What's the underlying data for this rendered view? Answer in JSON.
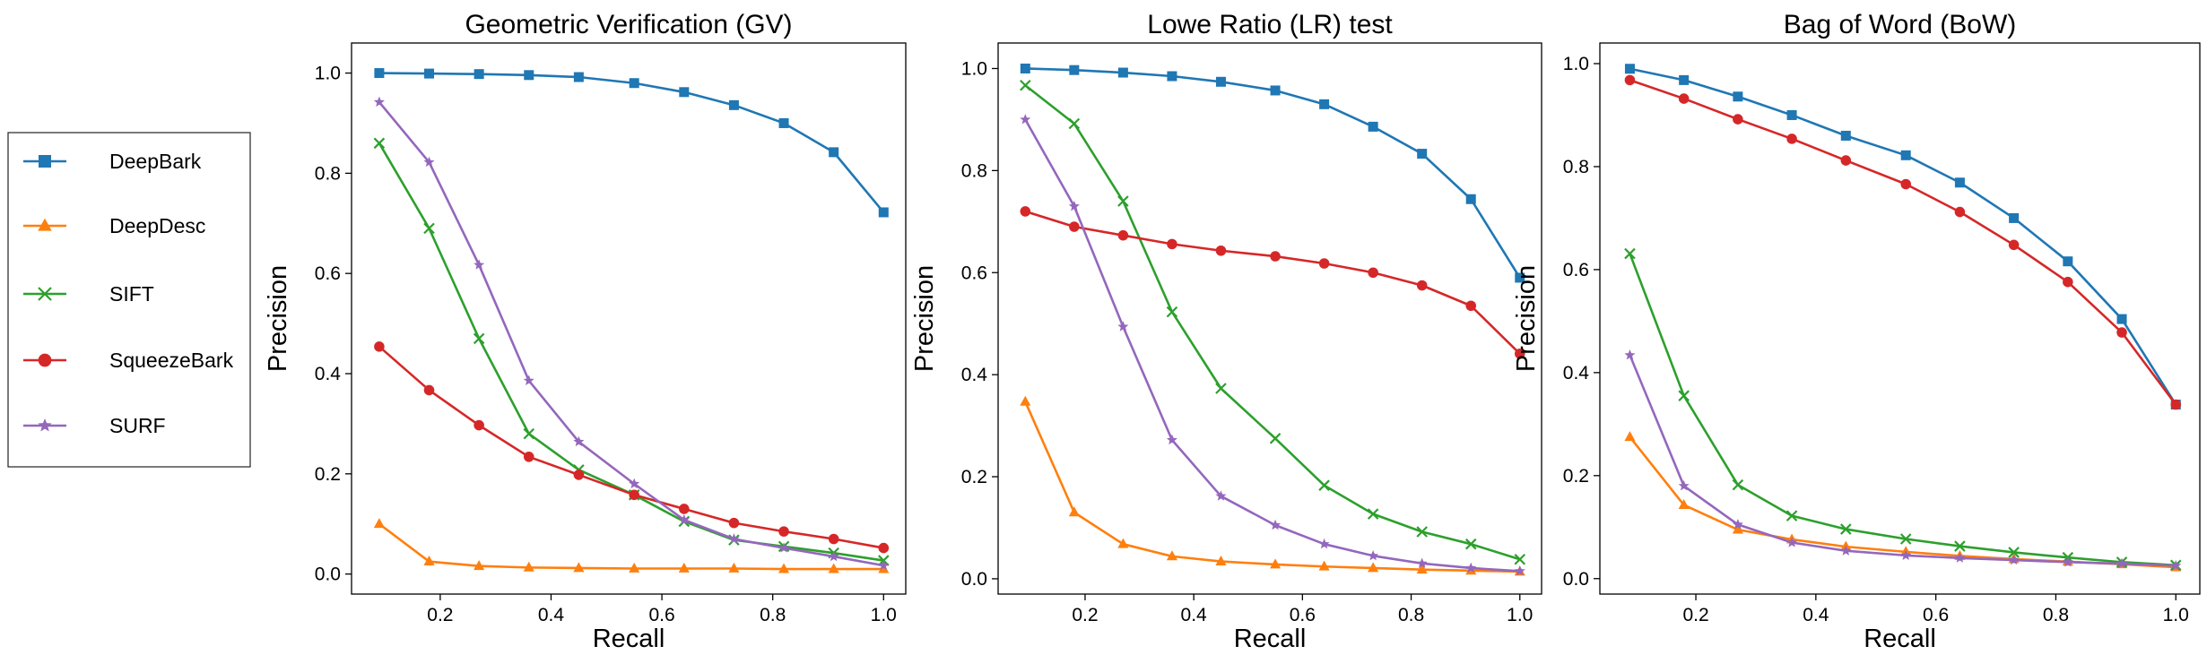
{
  "legend": {
    "placement": "left, outside panels",
    "entries": [
      {
        "label": "DeepBark",
        "color": "#1f77b4",
        "marker": "square"
      },
      {
        "label": "DeepDesc",
        "color": "#ff7f0e",
        "marker": "triangle"
      },
      {
        "label": "SIFT",
        "color": "#2ca02c",
        "marker": "x"
      },
      {
        "label": "SqueezeBark",
        "color": "#d62728",
        "marker": "circle"
      },
      {
        "label": "SURF",
        "color": "#9467bd",
        "marker": "star"
      }
    ]
  },
  "chart_data": [
    {
      "type": "line",
      "title": "Geometric Verification (GV)",
      "xlabel": "Recall",
      "ylabel": "Precision",
      "xlim": [
        0.04,
        1.04
      ],
      "ylim": [
        -0.04,
        1.06
      ],
      "xticks": [
        "0.2",
        "0.4",
        "0.6",
        "0.8",
        "1.0"
      ],
      "yticks": [
        "0.0",
        "0.2",
        "0.4",
        "0.6",
        "0.8",
        "1.0"
      ],
      "grid": false,
      "x": [
        0.09,
        0.18,
        0.27,
        0.36,
        0.45,
        0.55,
        0.64,
        0.73,
        0.82,
        0.91,
        1.0
      ],
      "series": [
        {
          "name": "DeepBark",
          "values": [
            1.0,
            0.999,
            0.998,
            0.996,
            0.992,
            0.98,
            0.962,
            0.936,
            0.9,
            0.842,
            0.722
          ]
        },
        {
          "name": "DeepDesc",
          "values": [
            0.1,
            0.025,
            0.016,
            0.013,
            0.012,
            0.011,
            0.011,
            0.011,
            0.01,
            0.01,
            0.01
          ]
        },
        {
          "name": "SIFT",
          "values": [
            0.86,
            0.69,
            0.47,
            0.28,
            0.208,
            0.158,
            0.105,
            0.068,
            0.055,
            0.042,
            0.027
          ]
        },
        {
          "name": "SqueezeBark",
          "values": [
            0.454,
            0.367,
            0.297,
            0.234,
            0.198,
            0.158,
            0.13,
            0.102,
            0.085,
            0.07,
            0.052
          ]
        },
        {
          "name": "SURF",
          "values": [
            0.942,
            0.822,
            0.617,
            0.386,
            0.264,
            0.18,
            0.108,
            0.07,
            0.052,
            0.035,
            0.017
          ]
        }
      ]
    },
    {
      "type": "line",
      "title": "Lowe Ratio (LR) test",
      "xlabel": "Recall",
      "ylabel": "Precision",
      "xlim": [
        0.04,
        1.04
      ],
      "ylim": [
        -0.03,
        1.05
      ],
      "xticks": [
        "0.2",
        "0.4",
        "0.6",
        "0.8",
        "1.0"
      ],
      "yticks": [
        "0.0",
        "0.2",
        "0.4",
        "0.6",
        "0.8",
        "1.0"
      ],
      "grid": false,
      "x": [
        0.09,
        0.18,
        0.27,
        0.36,
        0.45,
        0.55,
        0.64,
        0.73,
        0.82,
        0.91,
        1.0
      ],
      "series": [
        {
          "name": "DeepBark",
          "values": [
            1.0,
            0.997,
            0.992,
            0.985,
            0.974,
            0.957,
            0.93,
            0.886,
            0.833,
            0.744,
            0.59
          ]
        },
        {
          "name": "DeepDesc",
          "values": [
            0.347,
            0.13,
            0.068,
            0.044,
            0.034,
            0.028,
            0.024,
            0.021,
            0.018,
            0.016,
            0.014
          ]
        },
        {
          "name": "SIFT",
          "values": [
            0.967,
            0.892,
            0.74,
            0.523,
            0.373,
            0.275,
            0.183,
            0.127,
            0.092,
            0.068,
            0.038
          ]
        },
        {
          "name": "SqueezeBark",
          "values": [
            0.72,
            0.69,
            0.673,
            0.656,
            0.643,
            0.632,
            0.618,
            0.6,
            0.575,
            0.535,
            0.441
          ]
        },
        {
          "name": "SURF",
          "values": [
            0.9,
            0.73,
            0.494,
            0.272,
            0.162,
            0.105,
            0.068,
            0.045,
            0.03,
            0.021,
            0.015
          ]
        }
      ]
    },
    {
      "type": "line",
      "title": "Bag of Word (BoW)",
      "xlabel": "Recall",
      "ylabel": "Precision",
      "xlim": [
        0.04,
        1.04
      ],
      "ylim": [
        -0.03,
        1.04
      ],
      "xticks": [
        "0.2",
        "0.4",
        "0.6",
        "0.8",
        "1.0"
      ],
      "yticks": [
        "0.0",
        "0.2",
        "0.4",
        "0.6",
        "0.8",
        "1.0"
      ],
      "grid": false,
      "x": [
        0.09,
        0.18,
        0.27,
        0.36,
        0.45,
        0.55,
        0.64,
        0.73,
        0.82,
        0.91,
        1.0
      ],
      "series": [
        {
          "name": "DeepBark",
          "values": [
            0.99,
            0.968,
            0.936,
            0.9,
            0.86,
            0.822,
            0.769,
            0.7,
            0.616,
            0.504,
            0.338
          ]
        },
        {
          "name": "DeepDesc",
          "values": [
            0.275,
            0.143,
            0.095,
            0.076,
            0.062,
            0.052,
            0.044,
            0.038,
            0.033,
            0.028,
            0.022
          ]
        },
        {
          "name": "SIFT",
          "values": [
            0.631,
            0.355,
            0.182,
            0.122,
            0.096,
            0.077,
            0.063,
            0.051,
            0.041,
            0.032,
            0.026
          ]
        },
        {
          "name": "SqueezeBark",
          "values": [
            0.968,
            0.932,
            0.892,
            0.854,
            0.812,
            0.766,
            0.712,
            0.648,
            0.576,
            0.478,
            0.338
          ]
        },
        {
          "name": "SURF",
          "values": [
            0.434,
            0.18,
            0.105,
            0.07,
            0.054,
            0.045,
            0.04,
            0.036,
            0.032,
            0.029,
            0.025
          ]
        }
      ]
    }
  ]
}
